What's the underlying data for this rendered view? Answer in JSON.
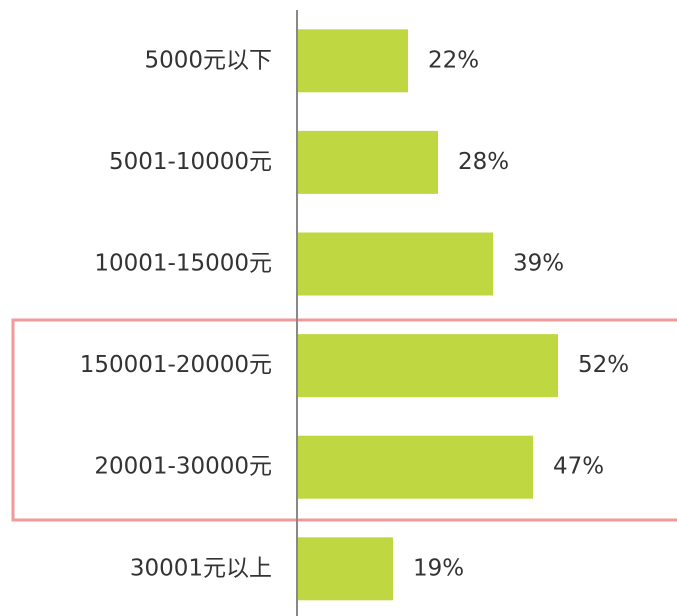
{
  "chart_data": {
    "type": "barh",
    "categories": [
      "5000元以下",
      "5001-10000元",
      "10001-15000元",
      "150001-20000元",
      "20001-30000元",
      "30001元以上"
    ],
    "values": [
      22,
      28,
      39,
      52,
      47,
      19
    ],
    "value_labels": [
      "22%",
      "28%",
      "39%",
      "52%",
      "47%",
      "19%"
    ],
    "color": "#bfd841"
  }
}
